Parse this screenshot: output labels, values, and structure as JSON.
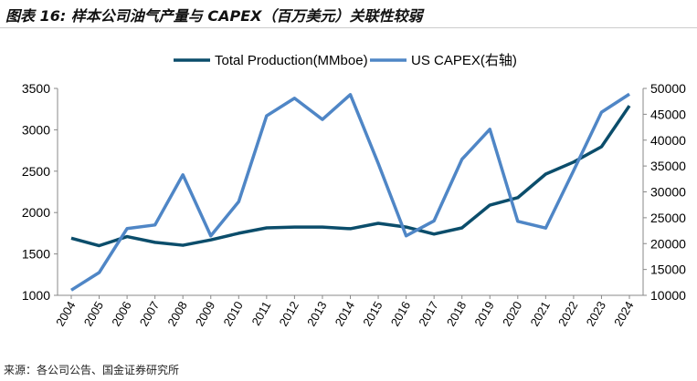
{
  "title": "图表 16: 样本公司油气产量与 CAPEX（百万美元）关联性较弱",
  "source": "来源：各公司公告、国金证券研究所",
  "chart_data": {
    "type": "line",
    "x": [
      "2004",
      "2005",
      "2006",
      "2007",
      "2008",
      "2009",
      "2010",
      "2011",
      "2012",
      "2013",
      "2014",
      "2015",
      "2016",
      "2017",
      "2018",
      "2019",
      "2020",
      "2021",
      "2022",
      "2023",
      "2024"
    ],
    "series": [
      {
        "name": "Total Production(MMboe)",
        "axis": "left",
        "color": "#0b4d6b",
        "values": [
          1690,
          1600,
          1710,
          1640,
          1605,
          1670,
          1750,
          1815,
          1825,
          1825,
          1805,
          1870,
          1825,
          1740,
          1815,
          2090,
          2180,
          2465,
          2610,
          2795,
          3290
        ]
      },
      {
        "name": "US CAPEX(右轴)",
        "axis": "right",
        "color": "#4f86c6",
        "values": [
          11000,
          14400,
          22900,
          23600,
          33300,
          21500,
          28100,
          44700,
          48100,
          44000,
          48800,
          35500,
          21500,
          24400,
          36300,
          42100,
          24300,
          23000,
          34100,
          45400,
          48900
        ]
      }
    ],
    "ylim": [
      1000,
      3500
    ],
    "yticks": [
      1000,
      1500,
      2000,
      2500,
      3000,
      3500
    ],
    "y2lim": [
      10000,
      50000
    ],
    "y2ticks": [
      10000,
      15000,
      20000,
      25000,
      30000,
      35000,
      40000,
      45000,
      50000
    ],
    "legend": "top-center",
    "grid": false
  }
}
